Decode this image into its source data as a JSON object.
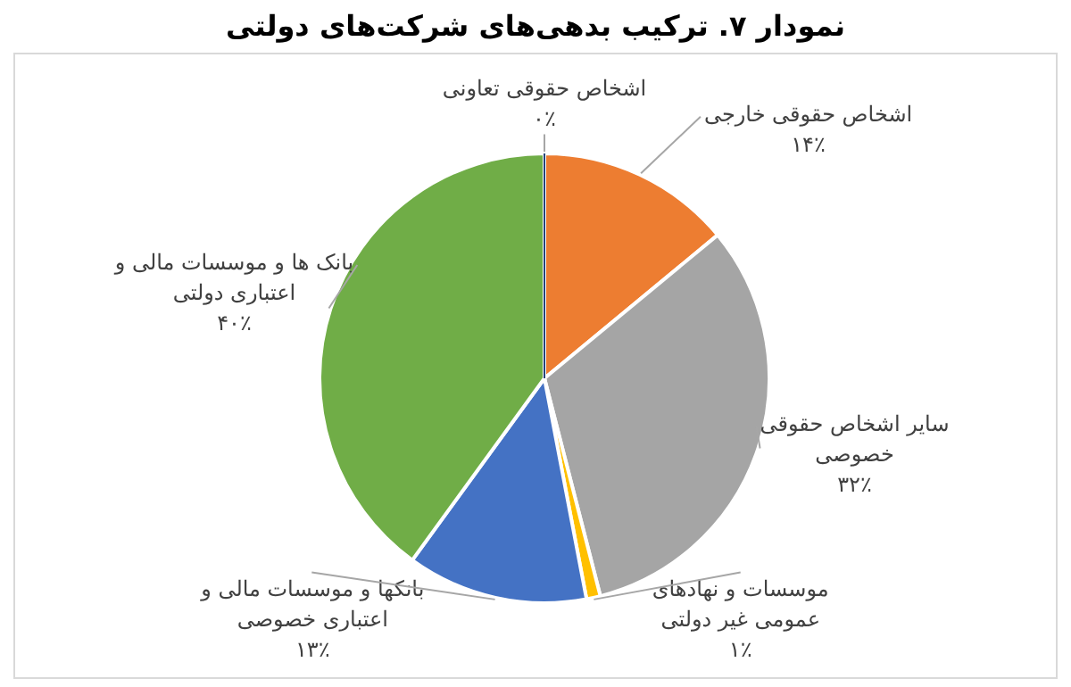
{
  "chart_data": {
    "type": "pie",
    "title": "نمودار ۷. ترکیب بدهی‌های شرکت‌های دولتی",
    "categories": [
      "اشخاص حقوقی خارجی",
      "سایر اشخاص حقوقی خصوصی",
      "موسسات و نهادهای عمومی غیر دولتی",
      "بانکها و موسسات مالی و اعتباری خصوصی",
      "بانک ها و موسسات مالی و اعتباری دولتی",
      "اشخاص حقوقی تعاونی"
    ],
    "values": [
      14,
      32,
      1,
      13,
      40,
      0
    ],
    "colors": [
      "#ed7d31",
      "#a5a5a5",
      "#ffc000",
      "#4472c4",
      "#70ad47",
      "#264478"
    ],
    "value_labels": [
      "۱۴٪",
      "۳۲٪",
      "۱٪",
      "۱۳٪",
      "۴۰٪",
      "۰٪"
    ]
  }
}
